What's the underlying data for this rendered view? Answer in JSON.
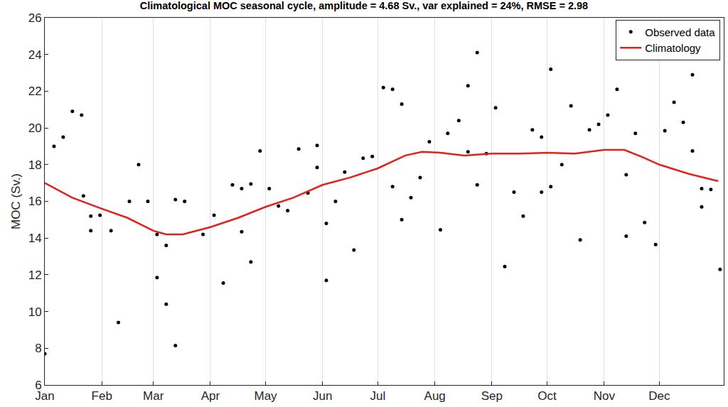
{
  "chart_data": {
    "type": "scatter",
    "title": "Climatological MOC seasonal cycle, amplitude = 4.68 Sv., var explained = 24%, RMSE = 2.98",
    "y_label": "MOC (Sv.)",
    "xlim": [
      0,
      369
    ],
    "xticks": [
      {
        "value": 0,
        "label": "Jan"
      },
      {
        "value": 31,
        "label": "Feb"
      },
      {
        "value": 59,
        "label": "Mar"
      },
      {
        "value": 90,
        "label": "Apr"
      },
      {
        "value": 120,
        "label": "May"
      },
      {
        "value": 151,
        "label": "Jun"
      },
      {
        "value": 181,
        "label": "Jul"
      },
      {
        "value": 212,
        "label": "Aug"
      },
      {
        "value": 243,
        "label": "Sep"
      },
      {
        "value": 273,
        "label": "Oct"
      },
      {
        "value": 304,
        "label": "Nov"
      },
      {
        "value": 334,
        "label": "Dec"
      }
    ],
    "ylim": [
      6,
      26
    ],
    "yticks": [
      6,
      8,
      10,
      12,
      14,
      16,
      18,
      20,
      22,
      24,
      26
    ],
    "grid": "x",
    "legend": "top right",
    "series": [
      {
        "name": "Observed data",
        "type": "scatter",
        "marker": "dot",
        "color": "#000000",
        "x": [
          0,
          5,
          10,
          15,
          20,
          21,
          25,
          25,
          30,
          36,
          40,
          46,
          51,
          56,
          61,
          61,
          66,
          66,
          71,
          71,
          76,
          86,
          92,
          97,
          102,
          107,
          107,
          112,
          112,
          117,
          122,
          127,
          132,
          138,
          143,
          148,
          148,
          153,
          153,
          158,
          163,
          168,
          173,
          178,
          184,
          189,
          189,
          194,
          194,
          199,
          204,
          209,
          215,
          219,
          225,
          230,
          230,
          235,
          235,
          240,
          245,
          250,
          255,
          260,
          265,
          270,
          270,
          275,
          275,
          281,
          286,
          291,
          296,
          301,
          306,
          311,
          316,
          316,
          321,
          326,
          332,
          337,
          342,
          347,
          352,
          352,
          357,
          357,
          362,
          367
        ],
        "values": [
          7.7,
          19.0,
          19.5,
          20.9,
          20.7,
          16.3,
          15.2,
          14.4,
          15.25,
          14.4,
          9.4,
          16.0,
          18.0,
          16.0,
          14.2,
          11.85,
          13.6,
          10.4,
          16.1,
          8.15,
          16.0,
          14.2,
          15.25,
          11.55,
          16.9,
          16.7,
          14.35,
          16.95,
          12.7,
          18.75,
          16.7,
          15.75,
          15.5,
          18.85,
          16.45,
          19.05,
          17.85,
          14.8,
          11.7,
          16.0,
          17.6,
          13.35,
          18.35,
          18.45,
          22.2,
          22.1,
          16.8,
          21.3,
          15.0,
          16.2,
          17.3,
          19.25,
          14.45,
          19.7,
          20.4,
          22.3,
          18.7,
          24.1,
          16.9,
          18.6,
          21.1,
          12.45,
          16.5,
          15.2,
          19.9,
          19.5,
          16.5,
          23.2,
          16.8,
          18.0,
          21.2,
          13.9,
          19.9,
          20.2,
          20.7,
          22.1,
          17.45,
          14.1,
          19.7,
          14.85,
          13.65,
          19.85,
          21.4,
          20.3,
          18.75,
          22.9,
          15.7,
          16.7,
          16.65,
          12.3
        ]
      },
      {
        "name": "Climatology",
        "type": "line",
        "line_style": "solid",
        "color": "#e3211c",
        "x": [
          0,
          15,
          31,
          45,
          59,
          66,
          75,
          90,
          105,
          120,
          135,
          151,
          166,
          181,
          196,
          205,
          215,
          228,
          243,
          258,
          273,
          288,
          304,
          315,
          325,
          334,
          350,
          366
        ],
        "values": [
          17.0,
          16.2,
          15.6,
          15.1,
          14.4,
          14.2,
          14.2,
          14.6,
          15.1,
          15.7,
          16.2,
          16.9,
          17.3,
          17.8,
          18.5,
          18.7,
          18.65,
          18.5,
          18.6,
          18.6,
          18.65,
          18.6,
          18.8,
          18.8,
          18.4,
          18.0,
          17.5,
          17.1
        ]
      }
    ]
  }
}
